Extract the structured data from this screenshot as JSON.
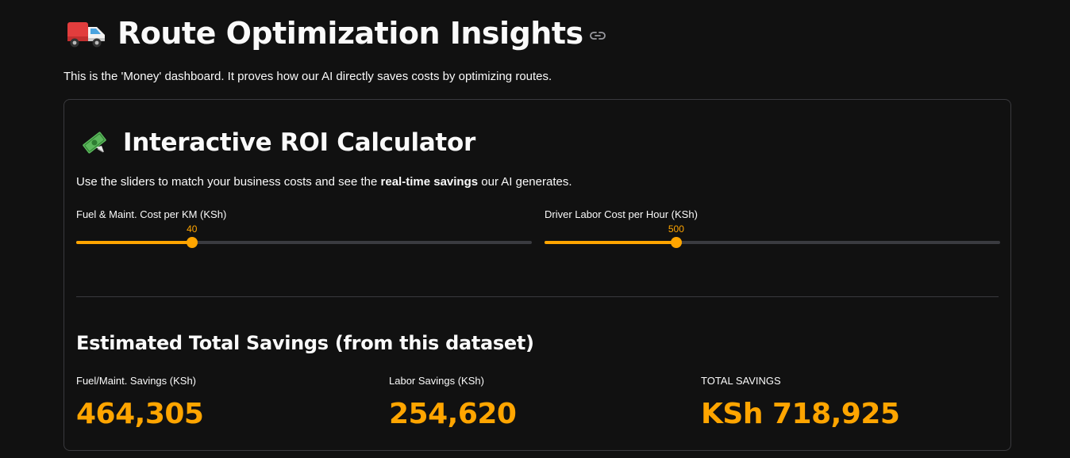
{
  "header": {
    "title": "Route Optimization Insights",
    "icon": "delivery-truck-icon",
    "link_icon": "link-icon",
    "intro": "This is the 'Money' dashboard. It proves how our AI directly saves costs by optimizing routes."
  },
  "calculator": {
    "title": "Interactive ROI Calculator",
    "icon": "money-with-wings-icon",
    "desc_prefix": "Use the sliders to match your business costs and see the ",
    "desc_bold": "real-time savings",
    "desc_suffix": " our AI generates."
  },
  "sliders": [
    {
      "label": "Fuel & Maint. Cost per KM (KSh)",
      "value": "40",
      "fraction": 0.254
    },
    {
      "label": "Driver Labor Cost per Hour (KSh)",
      "value": "500",
      "fraction": 0.289
    }
  ],
  "savings": {
    "title": "Estimated Total Savings (from this dataset)",
    "metrics": [
      {
        "label": "Fuel/Maint. Savings (KSh)",
        "value": "464,305"
      },
      {
        "label": "Labor Savings (KSh)",
        "value": "254,620"
      },
      {
        "label": "TOTAL SAVINGS",
        "value": "KSh 718,925"
      }
    ]
  },
  "colors": {
    "accent": "#ffa500",
    "background": "#111111",
    "track": "#3a3b40",
    "text": "#fafafa"
  }
}
